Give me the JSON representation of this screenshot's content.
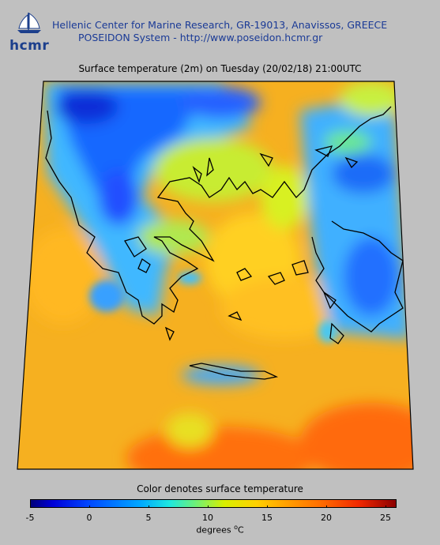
{
  "header": {
    "logo_text": "hcmr",
    "org_line": "Hellenic Center for Marine Research, GR-19013, Anavissos, GREECE",
    "system_line": "POSEIDON System - http://www.poseidon.hcmr.gr"
  },
  "map": {
    "title": "Surface temperature (2m) on Tuesday (20/02/18) 21:00UTC",
    "region": "Greece / Aegean Sea"
  },
  "legend": {
    "title": "Color denotes surface temperature",
    "ticks": [
      "-5",
      "0",
      "5",
      "10",
      "15",
      "20",
      "25"
    ],
    "unit_prefix": "degrees ",
    "unit_degree": "o",
    "unit_suffix": "C",
    "colors": [
      "#00007a",
      "#0000d8",
      "#0048ff",
      "#00a8ff",
      "#1ee8e0",
      "#6cf07a",
      "#d8f000",
      "#ffd000",
      "#ffa000",
      "#ff6a00",
      "#f02800",
      "#8c0000"
    ]
  }
}
